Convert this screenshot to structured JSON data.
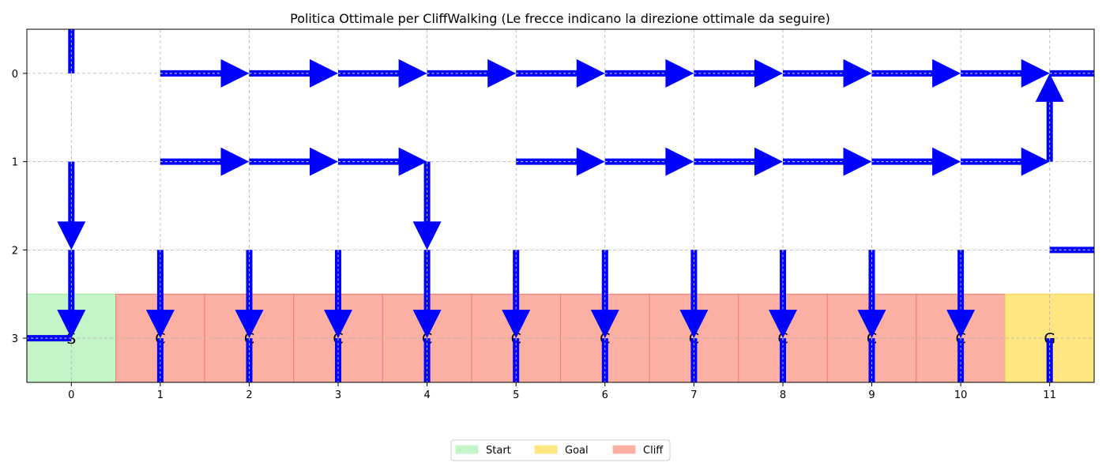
{
  "chart_data": {
    "type": "heatmap",
    "title": "Politica Ottimale per CliffWalking (Le frecce indicano la direzione ottimale da seguire)",
    "xlabel": "",
    "ylabel": "",
    "x_ticks": [
      "0",
      "1",
      "2",
      "3",
      "4",
      "5",
      "6",
      "7",
      "8",
      "9",
      "10",
      "11"
    ],
    "y_ticks": [
      "0",
      "1",
      "2",
      "3"
    ],
    "grid": true,
    "rows": 4,
    "cols": 12,
    "special_cells": [
      {
        "type": "start",
        "label": "S",
        "row": 3,
        "col": 0
      },
      {
        "type": "cliff",
        "label": "C",
        "row": 3,
        "col": 1
      },
      {
        "type": "cliff",
        "label": "C",
        "row": 3,
        "col": 2
      },
      {
        "type": "cliff",
        "label": "C",
        "row": 3,
        "col": 3
      },
      {
        "type": "cliff",
        "label": "C",
        "row": 3,
        "col": 4
      },
      {
        "type": "cliff",
        "label": "C",
        "row": 3,
        "col": 5
      },
      {
        "type": "cliff",
        "label": "C",
        "row": 3,
        "col": 6
      },
      {
        "type": "cliff",
        "label": "C",
        "row": 3,
        "col": 7
      },
      {
        "type": "cliff",
        "label": "C",
        "row": 3,
        "col": 8
      },
      {
        "type": "cliff",
        "label": "C",
        "row": 3,
        "col": 9
      },
      {
        "type": "cliff",
        "label": "C",
        "row": 3,
        "col": 10
      },
      {
        "type": "goal",
        "label": "G",
        "row": 3,
        "col": 11
      }
    ],
    "policy": [
      [
        "up",
        "right",
        "right",
        "right",
        "right",
        "right",
        "right",
        "right",
        "right",
        "right",
        "right",
        "right"
      ],
      [
        "down",
        "right",
        "right",
        "right",
        "down",
        "right",
        "right",
        "right",
        "right",
        "right",
        "right",
        "up"
      ],
      [
        "down",
        "down",
        "down",
        "down",
        "down",
        "down",
        "down",
        "down",
        "down",
        "down",
        "down",
        "right"
      ],
      [
        "left",
        "down",
        "down",
        "down",
        "down",
        "down",
        "down",
        "down",
        "down",
        "down",
        "down",
        "down"
      ]
    ],
    "legend": [
      {
        "name": "Start",
        "color": "#c3f5c8"
      },
      {
        "name": "Goal",
        "color": "#ffe680"
      },
      {
        "name": "Cliff",
        "color": "#fcb0a3"
      }
    ],
    "legend_position": "bottom-center",
    "colors": {
      "arrow": "#0000ff",
      "grid": "#b0b0b0",
      "start_edge": "#98e8a0",
      "cliff_edge": "#f07f6c",
      "goal_edge": "#f4d34d"
    }
  }
}
